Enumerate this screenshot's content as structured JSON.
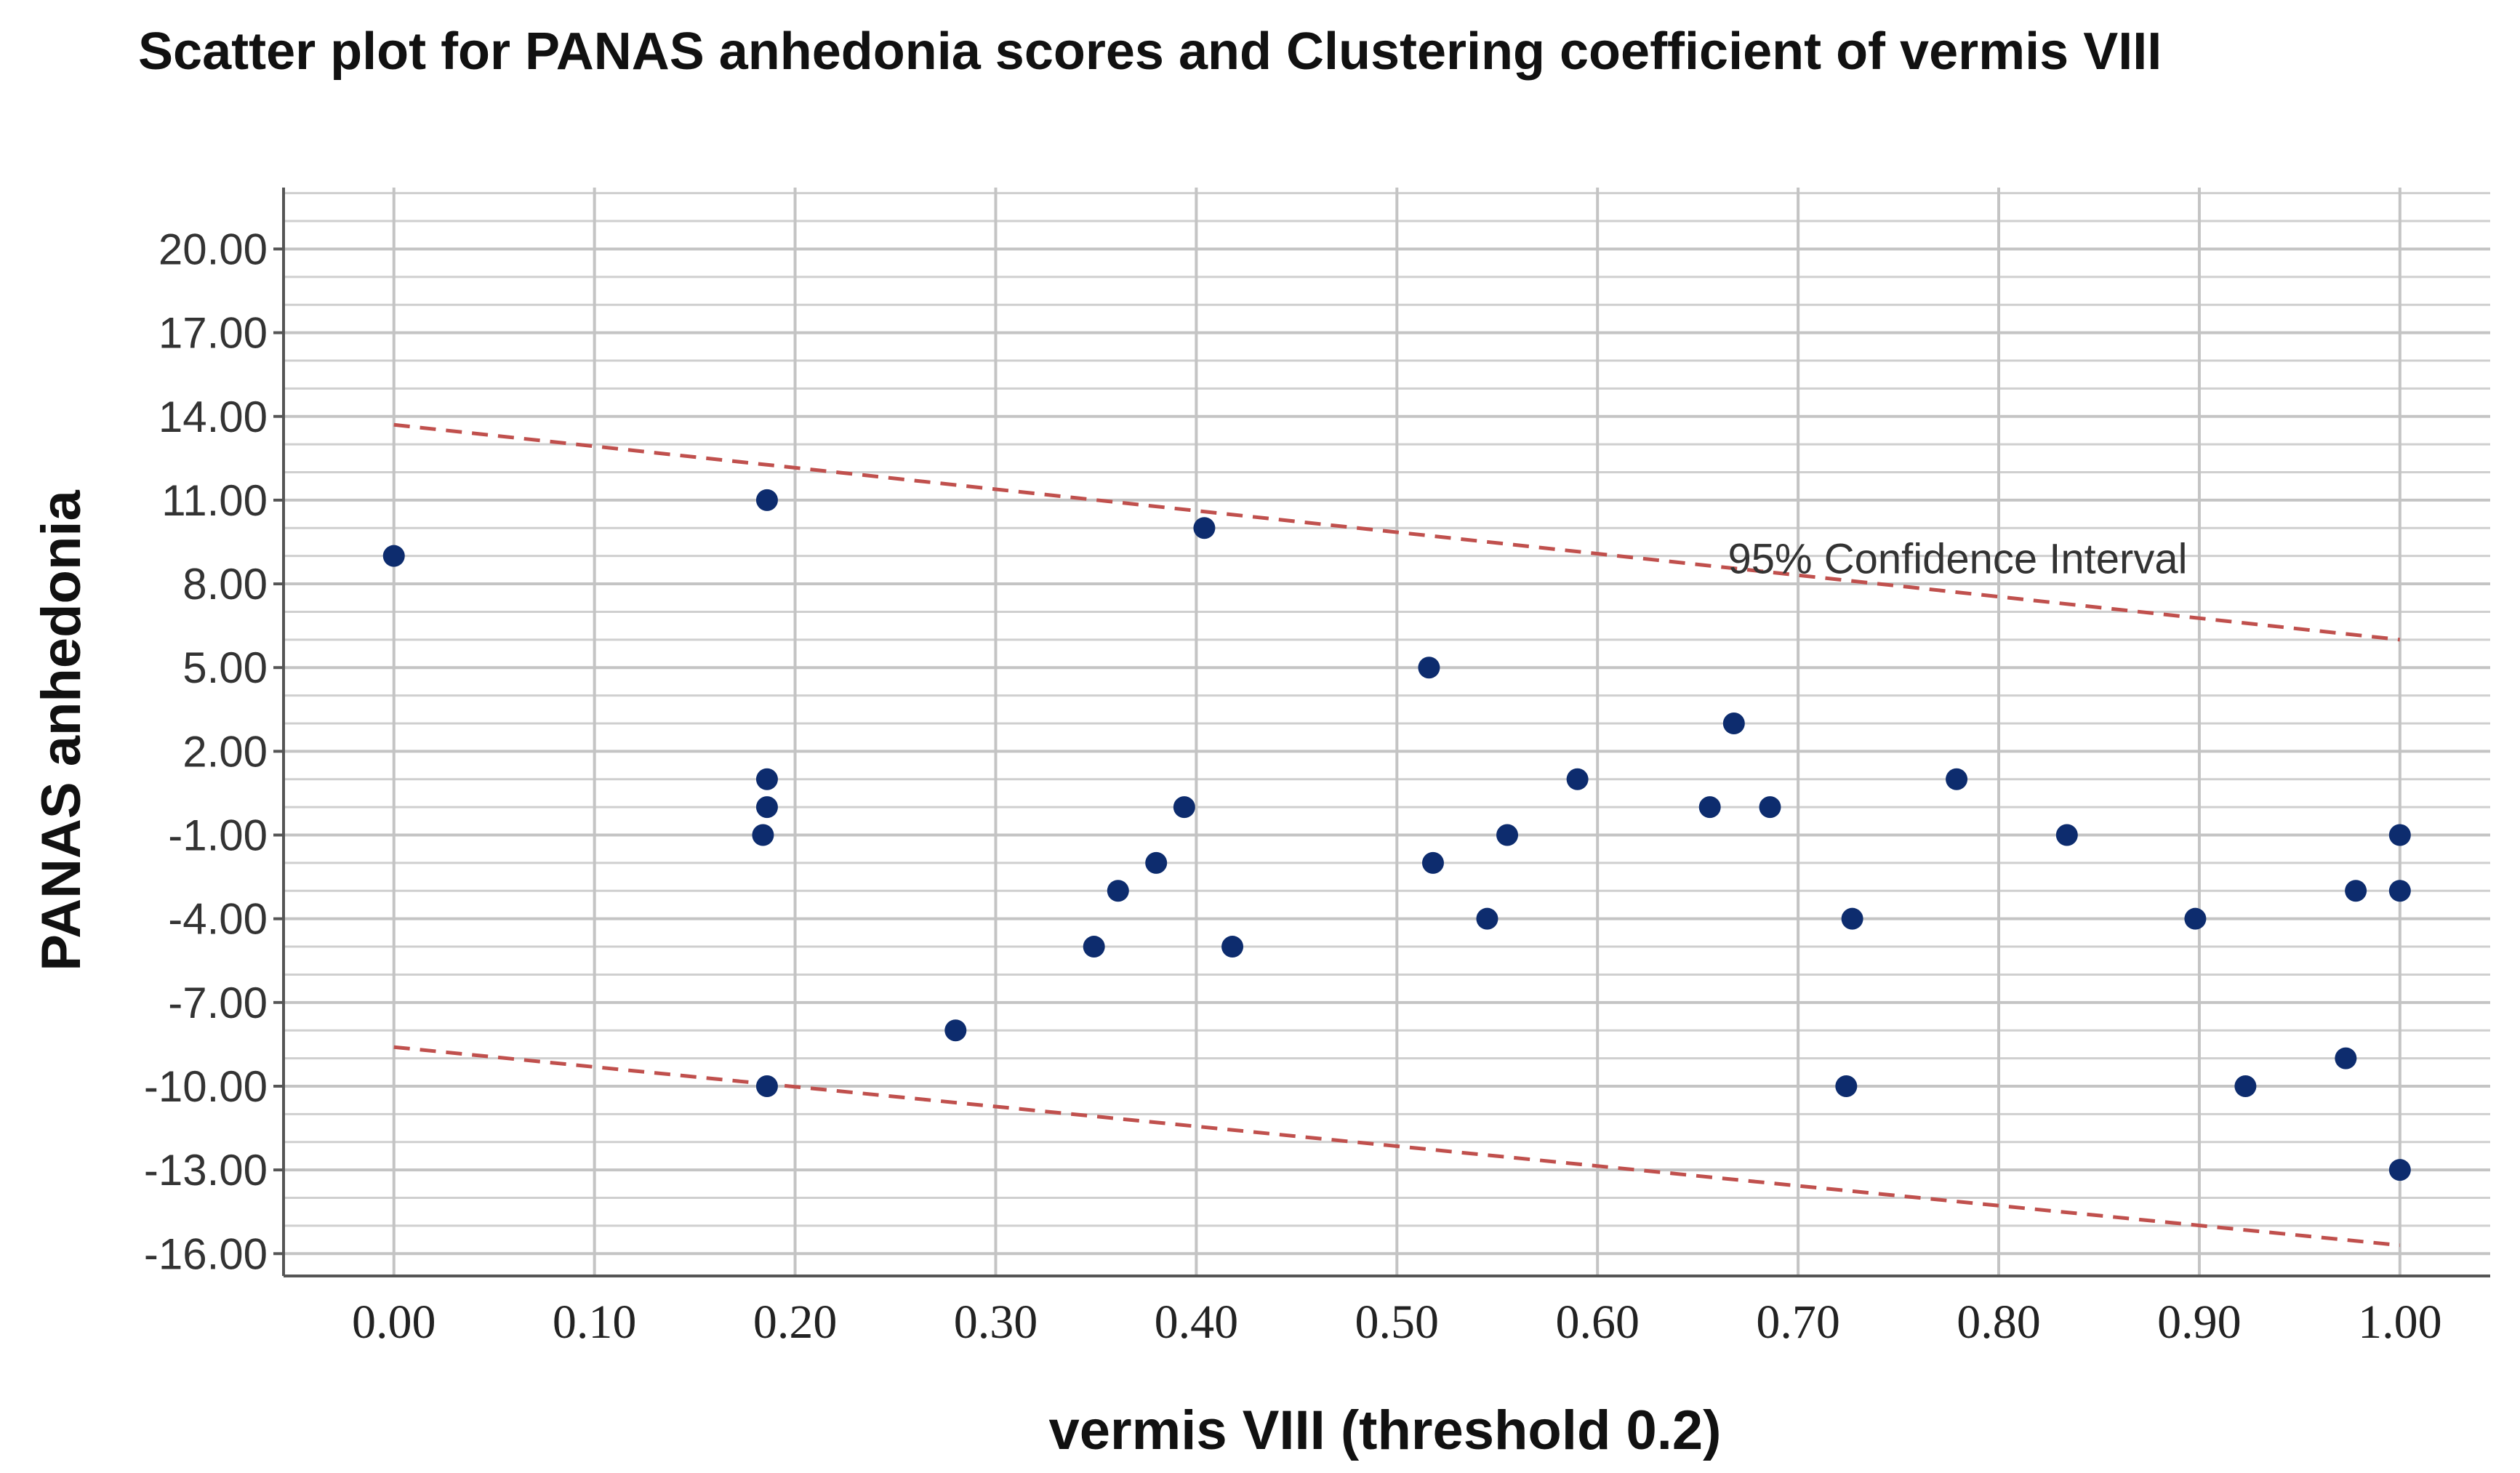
{
  "chart_data": {
    "type": "scatter",
    "title": "Scatter plot for PANAS anhedonia scores and Clustering coefficient of vermis VIII",
    "xlabel": "vermis VIII (threshold 0.2)",
    "ylabel": "PANAS anhedonia",
    "xlim": [
      -0.055,
      1.045
    ],
    "ylim": [
      -16.8,
      22.2
    ],
    "x_ticks": [
      "0.00",
      "0.10",
      "0.20",
      "0.30",
      "0.40",
      "0.50",
      "0.60",
      "0.70",
      "0.80",
      "0.90",
      "1.00"
    ],
    "y_ticks": [
      "20.00",
      "17.00",
      "14.00",
      "11.00",
      "8.00",
      "5.00",
      "2.00",
      "-1.00",
      "-4.00",
      "-7.00",
      "-10.00",
      "-13.00",
      "-16.00"
    ],
    "grid": true,
    "colors": {
      "points": "#0d2c6e",
      "confidence_interval": "#c0504d",
      "grid": "#c4c4c4"
    },
    "points": [
      {
        "x": 0.0,
        "y": 9
      },
      {
        "x": 0.186,
        "y": 11
      },
      {
        "x": 0.186,
        "y": 1
      },
      {
        "x": 0.186,
        "y": 0
      },
      {
        "x": 0.184,
        "y": -1
      },
      {
        "x": 0.186,
        "y": -10
      },
      {
        "x": 0.28,
        "y": -8
      },
      {
        "x": 0.349,
        "y": -5
      },
      {
        "x": 0.361,
        "y": -3
      },
      {
        "x": 0.38,
        "y": -2
      },
      {
        "x": 0.394,
        "y": 0
      },
      {
        "x": 0.404,
        "y": 10
      },
      {
        "x": 0.418,
        "y": -5
      },
      {
        "x": 0.516,
        "y": 5
      },
      {
        "x": 0.518,
        "y": -2
      },
      {
        "x": 0.545,
        "y": -4
      },
      {
        "x": 0.555,
        "y": -1
      },
      {
        "x": 0.59,
        "y": 1
      },
      {
        "x": 0.656,
        "y": 0
      },
      {
        "x": 0.668,
        "y": 3
      },
      {
        "x": 0.686,
        "y": 0
      },
      {
        "x": 0.724,
        "y": -10
      },
      {
        "x": 0.727,
        "y": -4
      },
      {
        "x": 0.779,
        "y": 1
      },
      {
        "x": 0.834,
        "y": -1
      },
      {
        "x": 0.898,
        "y": -4
      },
      {
        "x": 0.923,
        "y": -10
      },
      {
        "x": 0.973,
        "y": -9
      },
      {
        "x": 0.978,
        "y": -3
      },
      {
        "x": 1.0,
        "y": -1
      },
      {
        "x": 1.0,
        "y": -3
      },
      {
        "x": 1.0,
        "y": -13
      }
    ],
    "confidence_interval": {
      "label": "95% Confidence Interval",
      "upper": [
        {
          "x": 0.0,
          "y": 13.7
        },
        {
          "x": 1.0,
          "y": 6.0
        }
      ],
      "lower": [
        {
          "x": 0.0,
          "y": -8.6
        },
        {
          "x": 1.0,
          "y": -15.7
        }
      ],
      "label_anchor": {
        "x": 0.665,
        "y": 8.9
      }
    }
  }
}
